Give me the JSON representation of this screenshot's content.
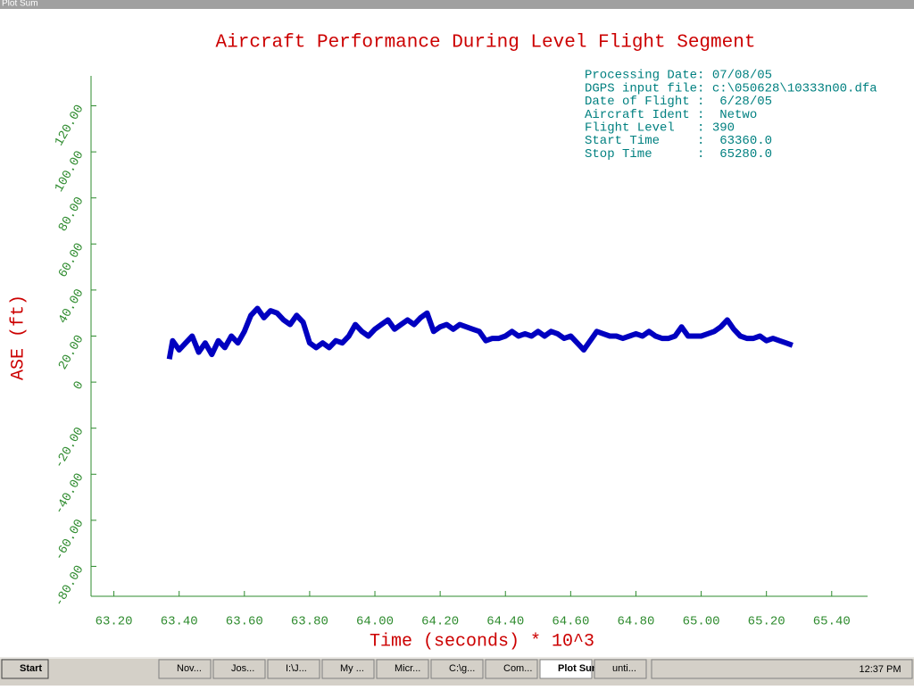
{
  "window": {
    "title": "Plot Sum"
  },
  "chart_data": {
    "type": "line",
    "title": "Aircraft Performance During Level Flight Segment",
    "x_label": "Time (seconds) * 10^3",
    "y_label": "ASE (ft)",
    "annotations": [
      "Processing Date: 07/08/05",
      "DGPS input file: c:\\050628\\10333n00.dfa",
      "Date of Flight :  6/28/05",
      "Aircraft Ident :  Netwo",
      "Flight Level   : 390",
      "Start Time     :  63360.0",
      "Stop Time      :  65280.0"
    ],
    "xlim": [
      63.13,
      65.51
    ],
    "ylim": [
      -93,
      133
    ],
    "xticks": [
      {
        "value": 63.2,
        "label": "63.20"
      },
      {
        "value": 63.4,
        "label": "63.40"
      },
      {
        "value": 63.6,
        "label": "63.60"
      },
      {
        "value": 63.8,
        "label": "63.80"
      },
      {
        "value": 64.0,
        "label": "64.00"
      },
      {
        "value": 64.2,
        "label": "64.20"
      },
      {
        "value": 64.4,
        "label": "64.40"
      },
      {
        "value": 64.6,
        "label": "64.60"
      },
      {
        "value": 64.8,
        "label": "64.80"
      },
      {
        "value": 65.0,
        "label": "65.00"
      },
      {
        "value": 65.2,
        "label": "65.20"
      },
      {
        "value": 65.4,
        "label": "65.40"
      }
    ],
    "yticks": [
      {
        "value": -80,
        "label": "-80.00"
      },
      {
        "value": -60,
        "label": "-60.00"
      },
      {
        "value": -40,
        "label": "-40.00"
      },
      {
        "value": -20,
        "label": "-20.00"
      },
      0,
      {
        "value": 20,
        "label": "20.00"
      },
      {
        "value": 40,
        "label": "40.00"
      },
      {
        "value": 60,
        "label": "60.00"
      },
      {
        "value": 80,
        "label": "80.00"
      },
      {
        "value": 100,
        "label": "100.00"
      },
      {
        "value": 120,
        "label": "120.00"
      }
    ],
    "x": [
      63.37,
      63.38,
      63.4,
      63.42,
      63.44,
      63.46,
      63.48,
      63.5,
      63.52,
      63.54,
      63.56,
      63.58,
      63.6,
      63.62,
      63.64,
      63.66,
      63.68,
      63.7,
      63.72,
      63.74,
      63.76,
      63.78,
      63.8,
      63.82,
      63.84,
      63.86,
      63.88,
      63.9,
      63.92,
      63.94,
      63.96,
      63.98,
      64.0,
      64.02,
      64.04,
      64.06,
      64.08,
      64.1,
      64.12,
      64.14,
      64.16,
      64.18,
      64.2,
      64.22,
      64.24,
      64.26,
      64.28,
      64.3,
      64.32,
      64.34,
      64.36,
      64.38,
      64.4,
      64.42,
      64.44,
      64.46,
      64.48,
      64.5,
      64.52,
      64.54,
      64.56,
      64.58,
      64.6,
      64.62,
      64.64,
      64.66,
      64.68,
      64.7,
      64.72,
      64.74,
      64.76,
      64.78,
      64.8,
      64.82,
      64.84,
      64.86,
      64.88,
      64.9,
      64.92,
      64.94,
      64.96,
      64.98,
      65.0,
      65.02,
      65.04,
      65.06,
      65.08,
      65.1,
      65.12,
      65.14,
      65.16,
      65.18,
      65.2,
      65.22,
      65.24,
      65.26,
      65.28
    ],
    "series": [
      {
        "name": "ASE",
        "color": "#0000c0",
        "values": [
          10,
          18,
          14,
          17,
          20,
          13,
          17,
          12,
          18,
          15,
          20,
          17,
          22,
          29,
          32,
          28,
          31,
          30,
          27,
          25,
          29,
          26,
          17,
          15,
          17,
          15,
          18,
          17,
          20,
          25,
          22,
          20,
          23,
          25,
          27,
          23,
          25,
          27,
          25,
          28,
          30,
          22,
          24,
          25,
          23,
          25,
          24,
          23,
          22,
          18,
          19,
          19,
          20,
          22,
          20,
          21,
          20,
          22,
          20,
          22,
          21,
          19,
          20,
          17,
          14,
          18,
          22,
          21,
          20,
          20,
          19,
          20,
          21,
          20,
          22,
          20,
          19,
          19,
          20,
          24,
          20,
          20,
          20,
          21,
          22,
          24,
          27,
          23,
          20,
          19,
          19,
          20,
          18,
          19,
          18,
          17,
          16
        ]
      }
    ]
  },
  "taskbar": {
    "start": "Start",
    "items": [
      "Nov...",
      "Jos...",
      "I:\\J...",
      "My ...",
      "Micr...",
      "C:\\g...",
      "Com...",
      "Plot Sum",
      "unti..."
    ],
    "clock": "12:37 PM"
  }
}
